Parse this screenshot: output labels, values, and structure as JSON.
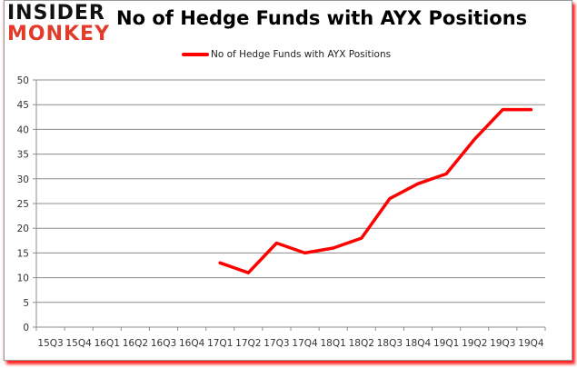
{
  "brand": {
    "logo_top": "INSIDER",
    "logo_bottom": "MONKEY",
    "logo_top_color": "#111111",
    "logo_bottom_color": "#e23b2a"
  },
  "chart_data": {
    "type": "line",
    "title": "No of Hedge Funds with AYX Positions",
    "xlabel": "",
    "ylabel": "",
    "ylim": [
      0,
      50
    ],
    "yticks": [
      0,
      5,
      10,
      15,
      20,
      25,
      30,
      35,
      40,
      45,
      50
    ],
    "grid": true,
    "legend_position": "top",
    "categories": [
      "15Q3",
      "15Q4",
      "16Q1",
      "16Q2",
      "16Q3",
      "16Q4",
      "17Q1",
      "17Q2",
      "17Q3",
      "17Q4",
      "18Q1",
      "18Q2",
      "18Q3",
      "18Q4",
      "19Q1",
      "19Q2",
      "19Q3",
      "19Q4"
    ],
    "series": [
      {
        "name": "No of Hedge Funds with AYX Positions",
        "color": "#ff0000",
        "values": [
          null,
          null,
          null,
          null,
          null,
          null,
          13,
          11,
          17,
          15,
          16,
          18,
          26,
          29,
          31,
          38,
          44,
          44
        ]
      }
    ]
  }
}
